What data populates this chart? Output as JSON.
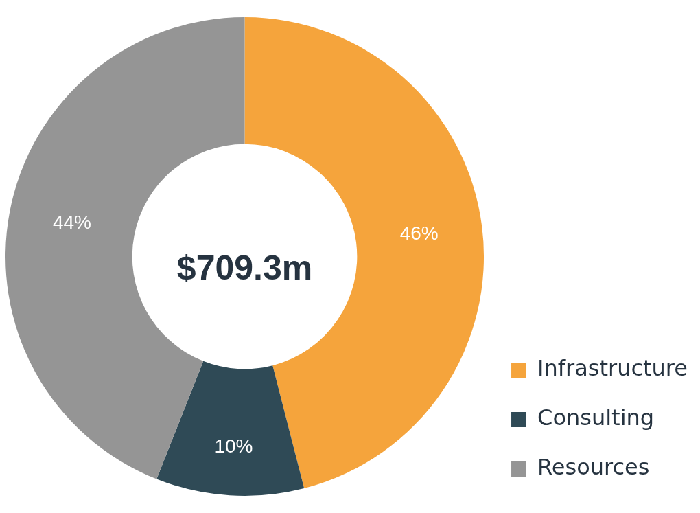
{
  "chart_data": {
    "type": "donut",
    "categories": [
      "Infrastructure",
      "Consulting",
      "Resources"
    ],
    "values": [
      46,
      10,
      44
    ],
    "colors": [
      "#f5a43c",
      "#2f4a56",
      "#959595"
    ],
    "annotations": [
      "$709.3m"
    ],
    "value_labels": [
      "46%",
      "10%",
      "44%"
    ],
    "legend": "bottom right"
  }
}
